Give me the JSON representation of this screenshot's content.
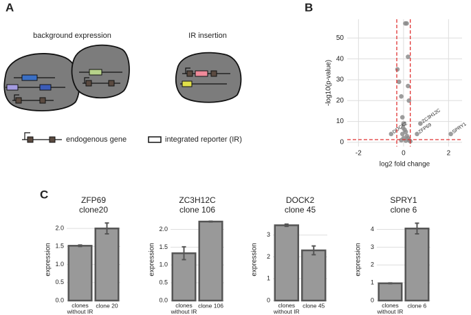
{
  "diagram": {
    "panel_labels": [
      "A",
      "B",
      "C"
    ],
    "background_title": "background expression",
    "insertion_title": "IR insertion",
    "legend_gene": "endogenous gene",
    "legend_reporter": "integrated reporter (IR)"
  },
  "chart_data": [
    {
      "type": "scatter",
      "xlabel": "log2 fold change",
      "ylabel": "-log10(p-value)",
      "color": "#8c8c8c",
      "xlim": [
        -2.5,
        2.6
      ],
      "ylim": [
        -2,
        59
      ],
      "xticks": [
        -2,
        0,
        2
      ],
      "yticks": [
        0,
        10,
        20,
        30,
        40,
        50
      ],
      "grid": true,
      "x": [
        0.08,
        0.14,
        0.2,
        -0.27,
        -0.2,
        0.2,
        0.24,
        -0.1,
        -0.05,
        0.0,
        -0.55,
        0.75,
        0.6,
        2.1,
        0.05,
        0.1,
        -0.05,
        0.15,
        0.2,
        0.0,
        0.25,
        -0.1,
        0.3,
        0.1,
        -0.02
      ],
      "y": [
        57,
        57,
        41,
        35,
        29,
        27,
        20,
        22,
        12,
        9,
        4,
        9,
        4,
        4,
        6,
        5,
        4,
        3,
        2,
        2,
        1,
        1,
        0.5,
        0.8,
        7
      ],
      "labels": [
        null,
        null,
        null,
        null,
        null,
        null,
        null,
        null,
        null,
        null,
        "DOCK2",
        "ZC3H12C",
        "ZFP69",
        "SPRY1",
        null,
        null,
        null,
        null,
        null,
        null,
        null,
        null,
        null,
        null,
        null
      ],
      "threshold_color": "#e03030",
      "vlines": [
        -0.3,
        0.3
      ],
      "hlines": [
        1.3
      ]
    },
    {
      "type": "bar",
      "title": "ZFP69\nclone20",
      "ylabel": "expression",
      "categories": [
        "clones\nwithout IR",
        "clone 20"
      ],
      "values": [
        1.52,
        2.0
      ],
      "errors": [
        0.02,
        0.15
      ],
      "color": "#999999",
      "ylim": [
        0,
        2.27
      ],
      "yticks": [
        {
          "value": 0,
          "label": "0.0"
        },
        0.5,
        {
          "value": 1,
          "label": "1.0"
        },
        1.5,
        {
          "value": 2,
          "label": "2.0"
        }
      ],
      "grid": true
    },
    {
      "type": "bar",
      "title": "ZC3H12C\nclone 106",
      "ylabel": "expression",
      "categories": [
        "clones\nwithout IR",
        "clone 106"
      ],
      "values": [
        1.33,
        2.22
      ],
      "errors": [
        0.18,
        0.01
      ],
      "color": "#999999",
      "ylim": [
        0,
        2.3
      ],
      "yticks": [
        {
          "value": 0,
          "label": "0.0"
        },
        0.5,
        {
          "value": 1,
          "label": "1.0"
        },
        1.5,
        {
          "value": 2,
          "label": "2.0"
        }
      ],
      "grid": true
    },
    {
      "type": "bar",
      "title": "DOCK2\nclone 45",
      "ylabel": "expression",
      "categories": [
        "clones\nwithout IR",
        "clone 45"
      ],
      "values": [
        3.45,
        2.3
      ],
      "errors": [
        0.05,
        0.2
      ],
      "color": "#999999",
      "ylim": [
        0,
        3.75
      ],
      "yticks": [
        0,
        1,
        2,
        3
      ],
      "grid": true
    },
    {
      "type": "bar",
      "title": "SPRY1\nclone 6",
      "ylabel": "expression",
      "categories": [
        "clones\nwithout IR",
        "clone 6"
      ],
      "values": [
        0.97,
        4.05
      ],
      "errors": [
        0.02,
        0.3
      ],
      "color": "#999999",
      "ylim": [
        0,
        4.6
      ],
      "yticks": [
        0,
        1,
        2,
        3,
        4
      ],
      "grid": true
    }
  ]
}
